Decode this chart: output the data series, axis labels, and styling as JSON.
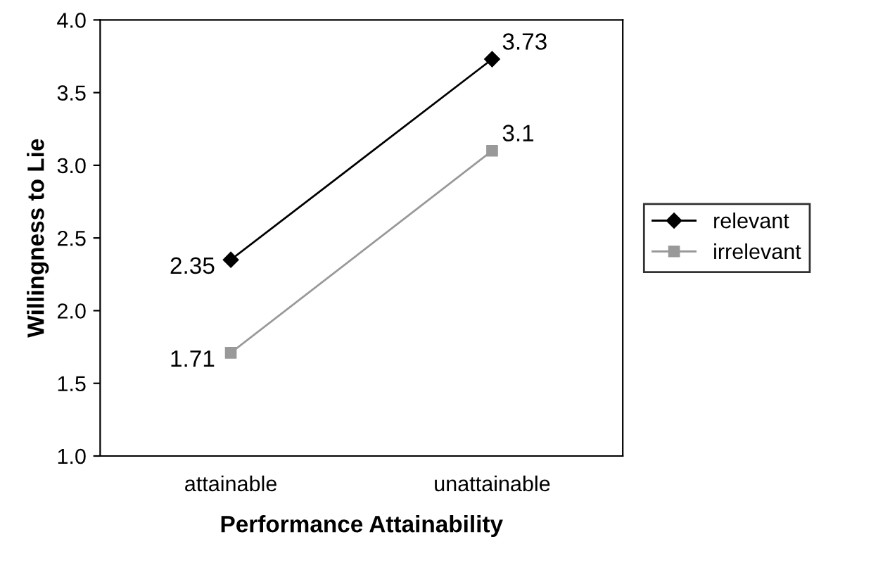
{
  "chart_data": {
    "type": "line",
    "xlabel": "Performance Attainability",
    "ylabel": "Willingness to Lie",
    "categories": [
      "attainable",
      "unattainable"
    ],
    "series": [
      {
        "name": "relevant",
        "color": "#000000",
        "marker": "diamond",
        "values": [
          2.35,
          3.73
        ]
      },
      {
        "name": "irrelevant",
        "color": "#999999",
        "marker": "square",
        "values": [
          1.71,
          3.1
        ]
      }
    ],
    "ylim": [
      1.0,
      4.0
    ],
    "yticks": [
      {
        "value": 1.0,
        "label": "1.0"
      },
      {
        "value": 1.5,
        "label": "1.5"
      },
      {
        "value": 2.0,
        "label": "2.0"
      },
      {
        "value": 2.5,
        "label": "2.5"
      },
      {
        "value": 3.0,
        "label": "3.0"
      },
      {
        "value": 3.5,
        "label": "3.5"
      },
      {
        "value": 4.0,
        "label": "4.0"
      }
    ],
    "data_labels": true,
    "legend": "right",
    "grid": false,
    "line_style": "solid"
  }
}
